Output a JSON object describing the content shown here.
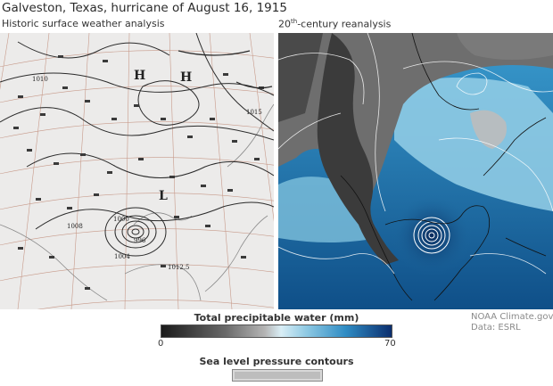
{
  "title": "Galveston, Texas, hurricane of August 16, 1915",
  "left_panel": {
    "subtitle": "Historic surface weather analysis",
    "labels": [
      "1000",
      "996",
      "1004",
      "1008",
      "1012.5",
      "1015",
      "1010",
      "H",
      "H",
      "L"
    ]
  },
  "right_panel": {
    "subtitle_prefix": "20",
    "subtitle_sup": "th",
    "subtitle_suffix": "-century reanalysis"
  },
  "credit": {
    "line1": "NOAA Climate.gov",
    "line2": "Data: ESRL"
  },
  "legend": {
    "colorbar_title": "Total precipitable water (mm)",
    "min_label": "0",
    "max_label": "70",
    "pressure_title": "Sea level pressure contours"
  },
  "colors": {
    "dry": "#1a1a1a",
    "mid": "#d9eef6",
    "wet": "#0b2e6e",
    "contour": "#ffffff"
  }
}
